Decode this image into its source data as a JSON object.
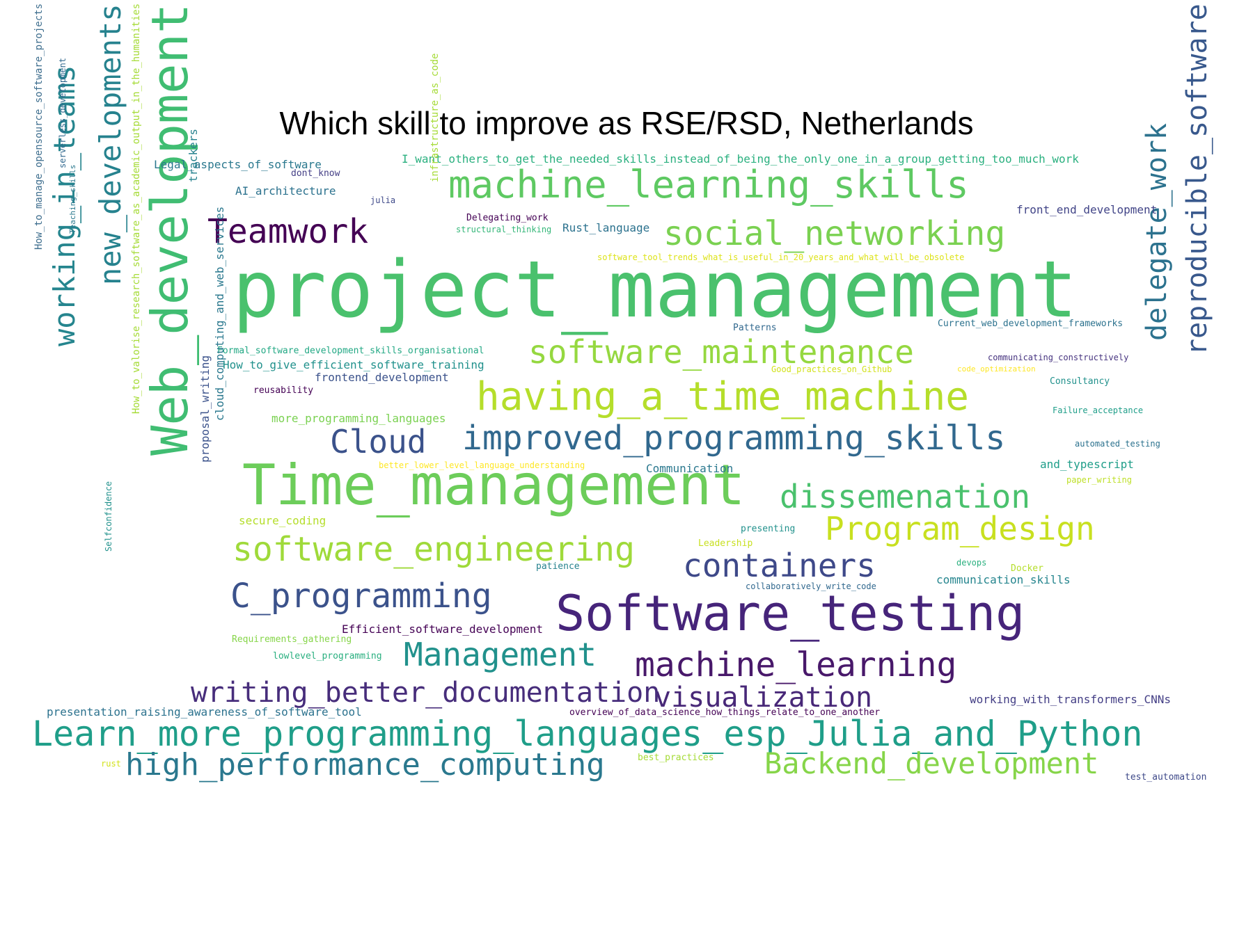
{
  "title": "Which skill to improve as RSE/RSD, Netherlands",
  "words": [
    {
      "text": "project_management",
      "color": "#4ac16d"
    },
    {
      "text": "Web_development",
      "color": "#40bd72"
    },
    {
      "text": "Time_management",
      "color": "#6ccd5a"
    },
    {
      "text": "Software_testing",
      "color": "#46247a"
    },
    {
      "text": "machine_learning_skills",
      "color": "#5ec962"
    },
    {
      "text": "social_networking",
      "color": "#7ad151"
    },
    {
      "text": "Teamwork",
      "color": "#440154"
    },
    {
      "text": "software_maintenance",
      "color": "#95d840"
    },
    {
      "text": "having_a_time_machine",
      "color": "#b5de2b"
    },
    {
      "text": "Cloud",
      "color": "#3b528b"
    },
    {
      "text": "improved_programming_skills",
      "color": "#31688e"
    },
    {
      "text": "dissemenation",
      "color": "#4ac16d"
    },
    {
      "text": "Program_design",
      "color": "#c8e020"
    },
    {
      "text": "software_engineering",
      "color": "#9fda3a"
    },
    {
      "text": "containers",
      "color": "#3e4989"
    },
    {
      "text": "C_programming",
      "color": "#3b528b"
    },
    {
      "text": "Management",
      "color": "#21918c"
    },
    {
      "text": "machine_learning",
      "color": "#48186a"
    },
    {
      "text": "visualization",
      "color": "#482878"
    },
    {
      "text": "writing_better_documentation",
      "color": "#472d7b"
    },
    {
      "text": "Learn_more_programming_languages_esp_Julia_and_Python",
      "color": "#1f9e89"
    },
    {
      "text": "high_performance_computing",
      "color": "#2a788e"
    },
    {
      "text": "Backend_development",
      "color": "#86d549"
    },
    {
      "text": "new_developments",
      "color": "#26828e"
    },
    {
      "text": "working_in_teams",
      "color": "#25858e"
    },
    {
      "text": "delegate_work",
      "color": "#2c728e"
    },
    {
      "text": "reproducible_software",
      "color": "#38588c"
    },
    {
      "text": "Legal_aspects_of_software",
      "color": "#2a788e"
    },
    {
      "text": "dont_know",
      "color": "#433e85"
    },
    {
      "text": "AI_architecture",
      "color": "#2c728e"
    },
    {
      "text": "julia",
      "color": "#3e4989"
    },
    {
      "text": "I_want_others_to_get_the_needed_skills_instead_of_being_the_only_one_in_a_group_getting_too_much_work",
      "color": "#2ab07f"
    },
    {
      "text": "front_end_development",
      "color": "#414487"
    },
    {
      "text": "Delegating_work",
      "color": "#440154"
    },
    {
      "text": "structural_thinking",
      "color": "#35b779"
    },
    {
      "text": "Rust_language",
      "color": "#2c728e"
    },
    {
      "text": "software_tool_trends_what_is_useful_in_20_years_and_what_will_be_obsolete",
      "color": "#dde318"
    },
    {
      "text": "Patterns",
      "color": "#31688e"
    },
    {
      "text": "Current_web_development_frameworks",
      "color": "#2c728e"
    },
    {
      "text": "Formal_software_development_skills_organisational",
      "color": "#22a884"
    },
    {
      "text": "How_to_give_efficient_software_training",
      "color": "#21918c"
    },
    {
      "text": "frontend_development",
      "color": "#3b528b"
    },
    {
      "text": "reusability",
      "color": "#440154"
    },
    {
      "text": "communicating_constructively",
      "color": "#46337f"
    },
    {
      "text": "Good_practices_on_Github",
      "color": "#d2e21b"
    },
    {
      "text": "code_optimization",
      "color": "#fde725"
    },
    {
      "text": "Consultancy",
      "color": "#21918c"
    },
    {
      "text": "more_programming_languages",
      "color": "#7ad151"
    },
    {
      "text": "Failure_acceptance",
      "color": "#1f9e89"
    },
    {
      "text": "automated_testing",
      "color": "#2c728e"
    },
    {
      "text": "better_lower_level_language_understanding",
      "color": "#fde725"
    },
    {
      "text": "Communication",
      "color": "#2a788e"
    },
    {
      "text": "and_typescript",
      "color": "#1f9e89"
    },
    {
      "text": "paper_writing",
      "color": "#bddf26"
    },
    {
      "text": "secure_coding",
      "color": "#b5de2b"
    },
    {
      "text": "presenting",
      "color": "#21918c"
    },
    {
      "text": "Leadership",
      "color": "#c8e020"
    },
    {
      "text": "patience",
      "color": "#26828e"
    },
    {
      "text": "devops",
      "color": "#2ab07f"
    },
    {
      "text": "Docker",
      "color": "#b5de2b"
    },
    {
      "text": "communication_skills",
      "color": "#25858e"
    },
    {
      "text": "collaboratively_write_code",
      "color": "#31688e"
    },
    {
      "text": "Efficient_software_development",
      "color": "#440154"
    },
    {
      "text": "Requirements_gathering",
      "color": "#86d549"
    },
    {
      "text": "lowlevel_programming",
      "color": "#29af7f"
    },
    {
      "text": "working_with_transformers_CNNs",
      "color": "#433e85"
    },
    {
      "text": "presentation_raising_awareness_of_software_tool",
      "color": "#2c728e"
    },
    {
      "text": "overview_of_data_science_how_things_relate_to_one_another",
      "color": "#440154"
    },
    {
      "text": "rust",
      "color": "#d2e21b"
    },
    {
      "text": "best_practices",
      "color": "#a5db36"
    },
    {
      "text": "test_automation",
      "color": "#3e4989"
    },
    {
      "text": "How_to_manage_opensource_software_projects",
      "color": "#3e6e8e"
    },
    {
      "text": "serverless_development",
      "color": "#31688e"
    },
    {
      "text": "Teaching_skills",
      "color": "#2a788e"
    },
    {
      "text": "How_to_valorise_research_software_as_academic_output_in_the_humanities",
      "color": "#a5db36"
    },
    {
      "text": "trackers",
      "color": "#26828e"
    },
    {
      "text": "infrastructure_as_code",
      "color": "#a5db36"
    },
    {
      "text": "proposal_writing",
      "color": "#3b528b"
    },
    {
      "text": "cloud_computing_and_web_services",
      "color": "#2a788e"
    },
    {
      "text": "Selfconfidence",
      "color": "#21918c"
    }
  ]
}
